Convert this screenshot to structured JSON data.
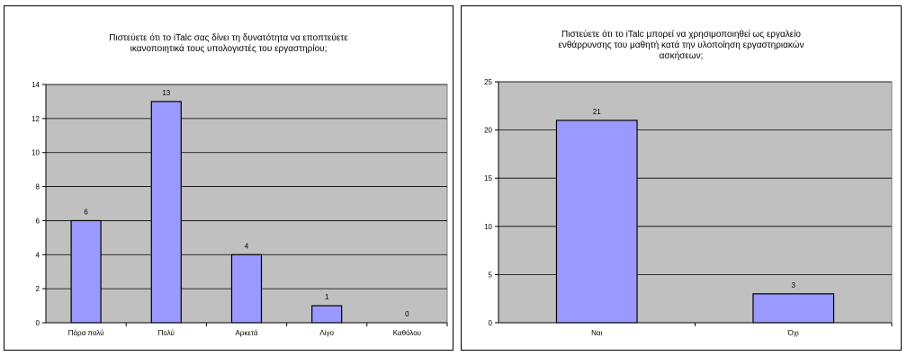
{
  "chart_data": [
    {
      "type": "bar",
      "title": "Πιστεύετε ότι το iTalc σας δίνει τη δυνατότητα να εποπτεύετε\nικανοποιητικά τους υπολογιστές του εργαστηρίου;",
      "categories": [
        "Πάρα πολύ",
        "Πολύ",
        "Αρκετά",
        "Λίγο",
        "Καθόλου"
      ],
      "values": [
        6,
        13,
        4,
        1,
        0
      ],
      "data_labels": [
        "6",
        "13",
        "4",
        "1",
        "0"
      ],
      "ylim": [
        0,
        14
      ],
      "yticks": [
        0,
        2,
        4,
        6,
        8,
        10,
        12,
        14
      ],
      "ytick_labels": [
        "0",
        "2",
        "4",
        "6",
        "8",
        "10",
        "12",
        "14"
      ],
      "xlabel": "",
      "ylabel": "",
      "grid": true,
      "bar_color": "#9999ff",
      "plot_bg": "#c0c0c0"
    },
    {
      "type": "bar",
      "title": "Πιστεύετε ότι το iTalc μπορεί να χρησιμοποιηθεί ως εργαλείο\nενθάρρυνσης του μαθητή κατά την υλοποίηση εργαστηριακών\nασκήσεων;",
      "categories": [
        "Ναι",
        "Όχι"
      ],
      "values": [
        21,
        3
      ],
      "data_labels": [
        "21",
        "3"
      ],
      "ylim": [
        0,
        25
      ],
      "yticks": [
        0,
        5,
        10,
        15,
        20,
        25
      ],
      "ytick_labels": [
        "0",
        "5",
        "10",
        "15",
        "20",
        "25"
      ],
      "xlabel": "",
      "ylabel": "",
      "grid": true,
      "bar_color": "#9999ff",
      "plot_bg": "#c0c0c0"
    }
  ]
}
